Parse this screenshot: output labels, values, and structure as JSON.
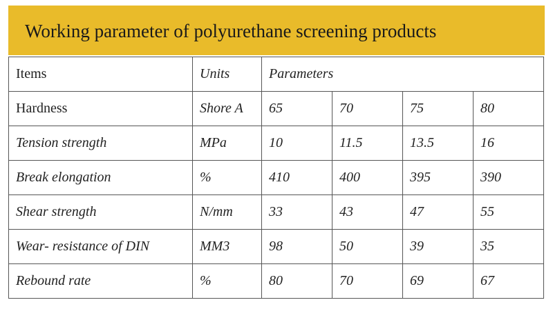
{
  "header": {
    "title": "Working parameter of polyurethane screening products"
  },
  "table": {
    "columns": [
      "Items",
      "Units",
      "Parameters"
    ],
    "rows": [
      [
        "Hardness",
        "Shore A",
        65,
        70,
        75,
        80
      ],
      [
        "Tension strength",
        "MPa",
        10,
        11.5,
        13.5,
        16
      ],
      [
        "Break elongation",
        "%",
        410,
        400,
        395,
        390
      ],
      [
        "Shear strength",
        "N/mm",
        33,
        43,
        47,
        55
      ],
      [
        "Wear- resistance of DIN",
        "MM3",
        98,
        50,
        39,
        35
      ],
      [
        "Rebound rate",
        "%",
        80,
        70,
        69,
        67
      ]
    ]
  }
}
